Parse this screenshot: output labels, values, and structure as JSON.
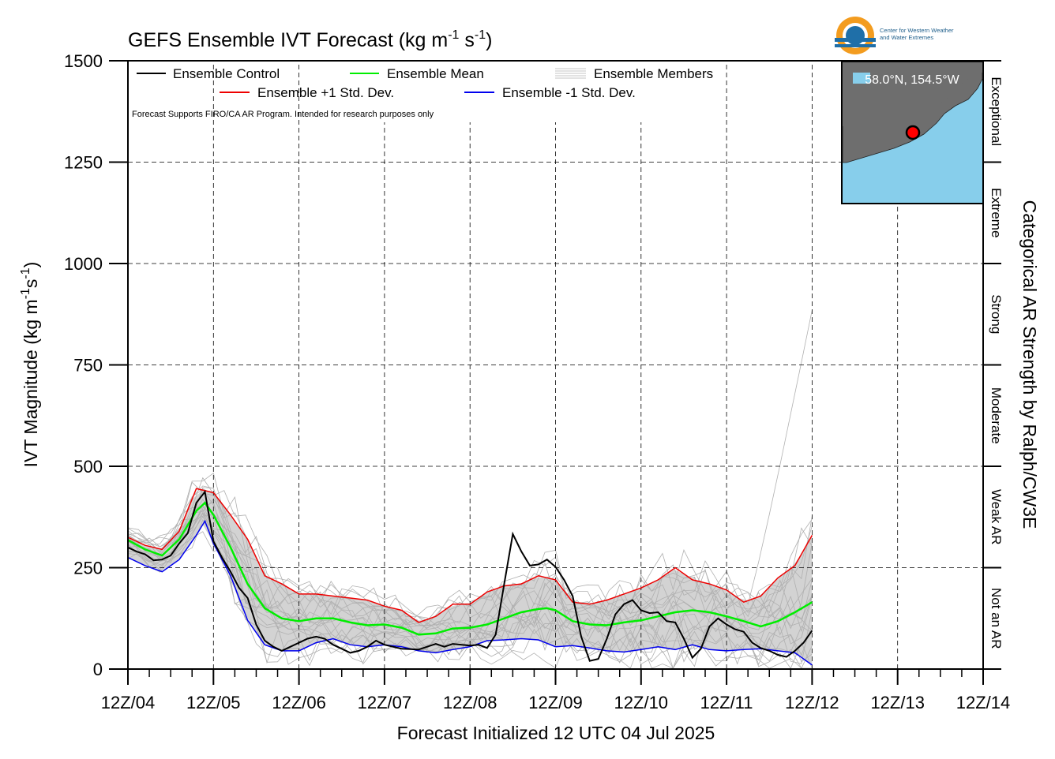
{
  "chart_data": {
    "type": "line",
    "title": "GEFS Ensemble IVT Forecast (kg m",
    "title_units": {
      "exp1": "-1",
      "mid": " s",
      "exp2": "-1",
      "end": ")"
    },
    "ylabel": "IVT Magnitude (kg m",
    "ylabel_units": {
      "exp1": "-1",
      "mid": "s",
      "exp2": "-1",
      "end": ")"
    },
    "xlabel": "Forecast Initialized 12 UTC 04 Jul 2025",
    "right_label": "Categorical AR Strength by Ralph/CW3E",
    "ylim": [
      0,
      1500
    ],
    "yticks": [
      0,
      250,
      500,
      750,
      1000,
      1250,
      1500
    ],
    "xlim": [
      0,
      10
    ],
    "xtick_labels": [
      "12Z/04",
      "12Z/05",
      "12Z/06",
      "12Z/07",
      "12Z/08",
      "12Z/09",
      "12Z/10",
      "12Z/11",
      "12Z/12",
      "12Z/13",
      "12Z/14"
    ],
    "grid": true,
    "legend_position": "top-left",
    "legend": {
      "control": "Ensemble Control",
      "mean": "Ensemble Mean",
      "members": "Ensemble Members",
      "plus": "Ensemble +1 Std. Dev.",
      "minus": "Ensemble -1 Std. Dev."
    },
    "note": "Forecast Supports FIRO/CA AR Program. Intended for research purposes only",
    "categories_right": [
      {
        "label": "Not an AR",
        "range": [
          0,
          250
        ]
      },
      {
        "label": "Weak AR",
        "range": [
          250,
          500
        ]
      },
      {
        "label": "Moderate",
        "range": [
          500,
          750
        ]
      },
      {
        "label": "Strong",
        "range": [
          750,
          1000
        ]
      },
      {
        "label": "Extreme",
        "range": [
          1000,
          1250
        ]
      },
      {
        "label": "Exceptional",
        "range": [
          1250,
          1500
        ]
      }
    ],
    "colors": {
      "control": "#000000",
      "mean": "#00ee00",
      "plus": "#ee0000",
      "minus": "#0000ee",
      "members": "#b0b0b0",
      "band": "#d3d3d3",
      "ocean": "#87ceeb",
      "land": "#6e6e6e"
    },
    "series": [
      {
        "name": "Ensemble Control",
        "key": "control",
        "points": [
          [
            0,
            300
          ],
          [
            0.1,
            290
          ],
          [
            0.2,
            283
          ],
          [
            0.3,
            268
          ],
          [
            0.4,
            270
          ],
          [
            0.5,
            280
          ],
          [
            0.6,
            310
          ],
          [
            0.7,
            335
          ],
          [
            0.8,
            410
          ],
          [
            0.9,
            437
          ],
          [
            1.0,
            315
          ],
          [
            1.1,
            275
          ],
          [
            1.2,
            240
          ],
          [
            1.3,
            200
          ],
          [
            1.4,
            175
          ],
          [
            1.5,
            110
          ],
          [
            1.6,
            70
          ],
          [
            1.7,
            55
          ],
          [
            1.8,
            45
          ],
          [
            1.9,
            55
          ],
          [
            2.0,
            65
          ],
          [
            2.1,
            75
          ],
          [
            2.2,
            80
          ],
          [
            2.3,
            75
          ],
          [
            2.4,
            60
          ],
          [
            2.5,
            50
          ],
          [
            2.6,
            40
          ],
          [
            2.7,
            45
          ],
          [
            2.8,
            55
          ],
          [
            2.9,
            70
          ],
          [
            3.0,
            60
          ],
          [
            3.2,
            50
          ],
          [
            3.4,
            48
          ],
          [
            3.6,
            62
          ],
          [
            3.7,
            55
          ],
          [
            3.8,
            62
          ],
          [
            4.0,
            58
          ],
          [
            4.1,
            60
          ],
          [
            4.2,
            52
          ],
          [
            4.3,
            85
          ],
          [
            4.4,
            210
          ],
          [
            4.5,
            333
          ],
          [
            4.6,
            290
          ],
          [
            4.7,
            255
          ],
          [
            4.8,
            258
          ],
          [
            4.9,
            270
          ],
          [
            5.0,
            252
          ],
          [
            5.1,
            220
          ],
          [
            5.2,
            180
          ],
          [
            5.3,
            80
          ],
          [
            5.4,
            20
          ],
          [
            5.5,
            25
          ],
          [
            5.6,
            75
          ],
          [
            5.7,
            135
          ],
          [
            5.8,
            160
          ],
          [
            5.9,
            170
          ],
          [
            6.0,
            145
          ],
          [
            6.1,
            138
          ],
          [
            6.2,
            140
          ],
          [
            6.3,
            118
          ],
          [
            6.4,
            115
          ],
          [
            6.5,
            75
          ],
          [
            6.6,
            28
          ],
          [
            6.7,
            50
          ],
          [
            6.8,
            105
          ],
          [
            6.9,
            125
          ],
          [
            7.0,
            110
          ],
          [
            7.1,
            98
          ],
          [
            7.2,
            92
          ],
          [
            7.3,
            65
          ],
          [
            7.4,
            52
          ],
          [
            7.5,
            45
          ],
          [
            7.6,
            35
          ],
          [
            7.7,
            30
          ],
          [
            7.8,
            45
          ],
          [
            7.9,
            65
          ],
          [
            8.0,
            95
          ]
        ]
      },
      {
        "name": "Ensemble Mean",
        "key": "mean",
        "points": [
          [
            0,
            318
          ],
          [
            0.2,
            295
          ],
          [
            0.4,
            280
          ],
          [
            0.6,
            320
          ],
          [
            0.8,
            390
          ],
          [
            0.9,
            410
          ],
          [
            1.0,
            380
          ],
          [
            1.2,
            300
          ],
          [
            1.4,
            210
          ],
          [
            1.6,
            150
          ],
          [
            1.8,
            125
          ],
          [
            2.0,
            118
          ],
          [
            2.2,
            125
          ],
          [
            2.4,
            125
          ],
          [
            2.6,
            115
          ],
          [
            2.8,
            108
          ],
          [
            3.0,
            110
          ],
          [
            3.2,
            102
          ],
          [
            3.4,
            85
          ],
          [
            3.6,
            88
          ],
          [
            3.8,
            100
          ],
          [
            4.0,
            102
          ],
          [
            4.2,
            110
          ],
          [
            4.4,
            125
          ],
          [
            4.6,
            140
          ],
          [
            4.8,
            148
          ],
          [
            4.9,
            150
          ],
          [
            5.0,
            145
          ],
          [
            5.2,
            118
          ],
          [
            5.4,
            110
          ],
          [
            5.6,
            108
          ],
          [
            5.8,
            115
          ],
          [
            6.0,
            120
          ],
          [
            6.2,
            130
          ],
          [
            6.4,
            140
          ],
          [
            6.6,
            145
          ],
          [
            6.8,
            140
          ],
          [
            7.0,
            130
          ],
          [
            7.2,
            118
          ],
          [
            7.4,
            105
          ],
          [
            7.6,
            118
          ],
          [
            7.8,
            140
          ],
          [
            8.0,
            165
          ]
        ]
      },
      {
        "name": "Ensemble +1 Std. Dev.",
        "key": "plus",
        "points": [
          [
            0,
            325
          ],
          [
            0.2,
            305
          ],
          [
            0.4,
            295
          ],
          [
            0.6,
            340
          ],
          [
            0.8,
            445
          ],
          [
            1.0,
            435
          ],
          [
            1.2,
            380
          ],
          [
            1.4,
            320
          ],
          [
            1.6,
            230
          ],
          [
            1.8,
            210
          ],
          [
            2.0,
            185
          ],
          [
            2.2,
            185
          ],
          [
            2.4,
            180
          ],
          [
            2.6,
            175
          ],
          [
            2.8,
            170
          ],
          [
            3.0,
            155
          ],
          [
            3.2,
            145
          ],
          [
            3.4,
            115
          ],
          [
            3.6,
            130
          ],
          [
            3.8,
            160
          ],
          [
            4.0,
            160
          ],
          [
            4.2,
            190
          ],
          [
            4.4,
            205
          ],
          [
            4.6,
            210
          ],
          [
            4.8,
            230
          ],
          [
            5.0,
            220
          ],
          [
            5.2,
            165
          ],
          [
            5.4,
            160
          ],
          [
            5.6,
            170
          ],
          [
            5.8,
            185
          ],
          [
            6.0,
            200
          ],
          [
            6.2,
            220
          ],
          [
            6.4,
            250
          ],
          [
            6.6,
            220
          ],
          [
            6.8,
            210
          ],
          [
            7.0,
            195
          ],
          [
            7.2,
            165
          ],
          [
            7.4,
            180
          ],
          [
            7.6,
            225
          ],
          [
            7.8,
            255
          ],
          [
            8.0,
            330
          ]
        ]
      },
      {
        "name": "Ensemble -1 Std. Dev.",
        "key": "minus",
        "points": [
          [
            0,
            275
          ],
          [
            0.2,
            255
          ],
          [
            0.4,
            240
          ],
          [
            0.6,
            270
          ],
          [
            0.8,
            330
          ],
          [
            0.9,
            365
          ],
          [
            1.0,
            310
          ],
          [
            1.2,
            230
          ],
          [
            1.4,
            120
          ],
          [
            1.6,
            60
          ],
          [
            1.8,
            45
          ],
          [
            2.0,
            45
          ],
          [
            2.2,
            65
          ],
          [
            2.4,
            75
          ],
          [
            2.6,
            60
          ],
          [
            2.8,
            55
          ],
          [
            3.0,
            60
          ],
          [
            3.2,
            55
          ],
          [
            3.4,
            45
          ],
          [
            3.6,
            40
          ],
          [
            3.8,
            48
          ],
          [
            4.0,
            55
          ],
          [
            4.2,
            70
          ],
          [
            4.4,
            72
          ],
          [
            4.6,
            75
          ],
          [
            4.8,
            72
          ],
          [
            5.0,
            55
          ],
          [
            5.2,
            58
          ],
          [
            5.4,
            52
          ],
          [
            5.6,
            45
          ],
          [
            5.8,
            42
          ],
          [
            6.0,
            48
          ],
          [
            6.2,
            55
          ],
          [
            6.4,
            48
          ],
          [
            6.6,
            60
          ],
          [
            6.8,
            48
          ],
          [
            7.0,
            45
          ],
          [
            7.2,
            48
          ],
          [
            7.4,
            50
          ],
          [
            7.6,
            45
          ],
          [
            7.8,
            40
          ],
          [
            8.0,
            10
          ]
        ]
      }
    ],
    "members_stats": {
      "count": 20,
      "spread_note": "members spread around mean within the grey band"
    },
    "inset_map": {
      "coord_label": "58.0°N, 154.5°W"
    }
  },
  "logo": {
    "line1": "Center for Western Weather",
    "line2": "and Water Extremes"
  }
}
